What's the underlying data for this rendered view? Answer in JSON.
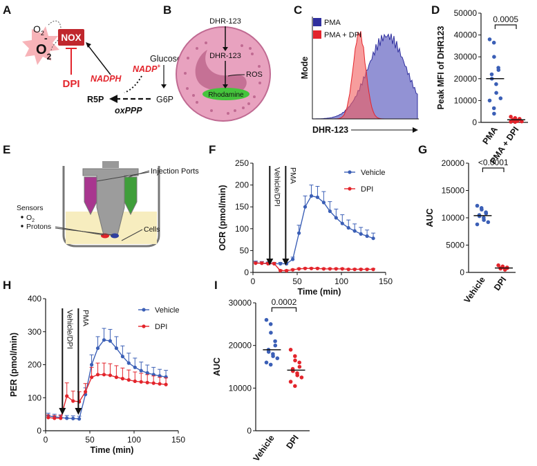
{
  "panel_letters": [
    "A",
    "B",
    "C",
    "D",
    "E",
    "F",
    "G",
    "H",
    "I"
  ],
  "colors": {
    "vehicle": "#3b5fb6",
    "dpi": "#e3242b",
    "pma_fill": "#2f2f9e",
    "cell": "#e8a2bf",
    "nucleus": "#c57195",
    "rhod": "#45c43c",
    "nox": "#c0272d"
  },
  "panel_a": {
    "o2": "O",
    "o2_sub": "2",
    "superoxide": "O",
    "superoxide_sup": "-",
    "superoxide_sub": "2",
    "nox": "NOX",
    "dpi": "DPI",
    "nadph": "NADPH",
    "nadp": "NADP",
    "nadp_sup": "+",
    "glucose": "Glucose",
    "r5p": "R5P",
    "g6p": "G6P",
    "oxppp": "oxPPP"
  },
  "panel_b": {
    "dhr_outside": "DHR-123",
    "dhr_inside": "DHR-123",
    "ros": "ROS",
    "rhodamine": "Rhodamine"
  },
  "panel_c": {
    "legend": [
      "PMA",
      "PMA + DPI"
    ],
    "ylabel": "Mode",
    "xlabel": "DHR-123"
  },
  "panel_e": {
    "injection": "Injection Ports",
    "sensors": "Sensors",
    "o2": "O",
    "o2_sub": "2",
    "protons": "Protons",
    "cells": "Cells"
  },
  "chart_data": [
    {
      "panel": "D",
      "type": "scatter",
      "ylabel": "Peak MFI of DHR123",
      "ylim": [
        0,
        50000
      ],
      "yticks": [
        "0",
        "10000",
        "20000",
        "30000",
        "40000",
        "50000"
      ],
      "categories": [
        "PMA",
        "PMA + DPI"
      ],
      "series": [
        {
          "name": "PMA",
          "values": [
            38000,
            36500,
            30000,
            25000,
            24000,
            22000,
            20000,
            17500,
            13500,
            11000,
            10000,
            6500,
            4000
          ],
          "median": 20000
        },
        {
          "name": "PMA + DPI",
          "values": [
            2600,
            2000,
            1800,
            1600,
            1500,
            1200,
            1000,
            800,
            600,
            400,
            300,
            200
          ],
          "median": 1200
        }
      ],
      "pvalue": "0.0005"
    },
    {
      "panel": "F",
      "type": "line",
      "ylabel": "OCR (pmol/min)",
      "xlabel": "Time (min)",
      "ylim": [
        0,
        250
      ],
      "xlim": [
        0,
        150
      ],
      "yticks": [
        "0",
        "50",
        "100",
        "150",
        "200",
        "250"
      ],
      "xticks": [
        "0",
        "50",
        "100",
        "150"
      ],
      "x": [
        3,
        10,
        17,
        24,
        31,
        38,
        45,
        52,
        59,
        66,
        73,
        80,
        87,
        94,
        101,
        108,
        115,
        122,
        129,
        136
      ],
      "series": [
        {
          "name": "Vehicle",
          "values": [
            22,
            21,
            21,
            20,
            20,
            20,
            30,
            90,
            150,
            175,
            172,
            160,
            140,
            125,
            112,
            102,
            95,
            88,
            83,
            78
          ],
          "errors": [
            4,
            4,
            3,
            3,
            3,
            3,
            5,
            18,
            25,
            25,
            25,
            25,
            22,
            20,
            20,
            18,
            16,
            15,
            14,
            12
          ]
        },
        {
          "name": "DPI",
          "values": [
            21,
            21,
            20,
            20,
            4,
            4,
            6,
            8,
            9,
            9,
            9,
            8,
            8,
            8,
            8,
            7,
            7,
            7,
            7,
            7
          ],
          "errors": [
            3,
            3,
            3,
            3,
            2,
            2,
            2,
            2,
            2,
            2,
            2,
            2,
            2,
            2,
            2,
            2,
            2,
            2,
            2,
            2
          ]
        }
      ],
      "annotations": [
        "Vehicle/DPI",
        "PMA"
      ]
    },
    {
      "panel": "G",
      "type": "scatter",
      "ylabel": "AUC",
      "ylim": [
        0,
        20000
      ],
      "yticks": [
        "0",
        "5000",
        "10000",
        "15000",
        "20000"
      ],
      "categories": [
        "Vehicle",
        "DPI"
      ],
      "series": [
        {
          "name": "Vehicle",
          "values": [
            12200,
            11800,
            11500,
            11000,
            10800,
            10500,
            10300,
            10000,
            9600,
            9200,
            8800
          ],
          "median": 10400
        },
        {
          "name": "DPI",
          "values": [
            1300,
            1100,
            1000,
            900,
            800,
            750,
            700,
            600,
            500
          ],
          "median": 800
        }
      ],
      "pvalue": "<0.0001"
    },
    {
      "panel": "H",
      "type": "line",
      "ylabel": "PER (pmol/min)",
      "xlabel": "Time (min)",
      "ylim": [
        0,
        400
      ],
      "xlim": [
        0,
        150
      ],
      "yticks": [
        "0",
        "100",
        "200",
        "300",
        "400"
      ],
      "xticks": [
        "0",
        "50",
        "100",
        "150"
      ],
      "x": [
        3,
        10,
        17,
        24,
        31,
        38,
        45,
        52,
        59,
        66,
        73,
        80,
        87,
        94,
        101,
        108,
        115,
        122,
        129,
        136
      ],
      "series": [
        {
          "name": "Vehicle",
          "values": [
            45,
            42,
            40,
            38,
            37,
            36,
            110,
            200,
            250,
            275,
            272,
            250,
            225,
            205,
            192,
            182,
            175,
            170,
            166,
            163
          ],
          "errors": [
            8,
            8,
            8,
            8,
            8,
            8,
            20,
            30,
            35,
            35,
            35,
            35,
            32,
            30,
            28,
            26,
            24,
            22,
            20,
            20
          ]
        },
        {
          "name": "DPI",
          "values": [
            40,
            38,
            38,
            105,
            90,
            88,
            118,
            162,
            170,
            170,
            168,
            162,
            158,
            154,
            150,
            148,
            146,
            144,
            142,
            140
          ],
          "errors": [
            8,
            8,
            8,
            40,
            30,
            30,
            25,
            30,
            35,
            35,
            35,
            35,
            32,
            30,
            28,
            26,
            24,
            22,
            20,
            20
          ]
        }
      ],
      "annotations": [
        "Vehicle/DPI",
        "PMA"
      ]
    },
    {
      "panel": "I",
      "type": "scatter",
      "ylabel": "AUC",
      "ylim": [
        0,
        30000
      ],
      "yticks": [
        "0",
        "10000",
        "20000",
        "30000"
      ],
      "categories": [
        "Vehicle",
        "DPI"
      ],
      "series": [
        {
          "name": "Vehicle",
          "values": [
            26000,
            25000,
            23000,
            21000,
            20000,
            19000,
            18500,
            18000,
            17500,
            17000,
            16000,
            15500
          ],
          "median": 19000
        },
        {
          "name": "DPI",
          "values": [
            19000,
            17500,
            16500,
            16000,
            15000,
            14500,
            14000,
            13500,
            13000,
            12500,
            11500,
            10500
          ],
          "median": 14200
        }
      ],
      "pvalue": "0.0002"
    }
  ]
}
